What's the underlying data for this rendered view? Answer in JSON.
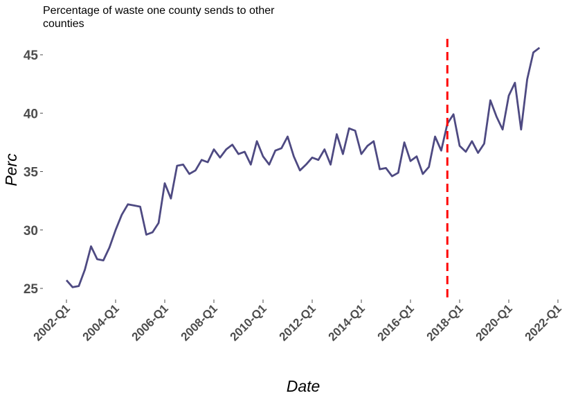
{
  "chart_data": {
    "type": "line",
    "title": "Percentage of waste one county sends to other counties",
    "xlabel": "Date",
    "ylabel": "Perc",
    "x_ticks": [
      "2002-Q1",
      "2004-Q1",
      "2006-Q1",
      "2008-Q1",
      "2010-Q1",
      "2012-Q1",
      "2014-Q1",
      "2016-Q1",
      "2018-Q1",
      "2020-Q1",
      "2022-Q1"
    ],
    "y_ticks": [
      25,
      30,
      35,
      40,
      45
    ],
    "ylim": [
      23.5,
      46.5
    ],
    "grid": false,
    "line_color": "#4e4a82",
    "vline": {
      "x": "2017-Q3",
      "color": "#ff0000",
      "style": "dashed"
    },
    "series": [
      {
        "x": [
          "2002-Q1",
          "2002-Q2",
          "2002-Q3",
          "2002-Q4",
          "2003-Q1",
          "2003-Q2",
          "2003-Q3",
          "2003-Q4",
          "2004-Q1",
          "2004-Q2",
          "2004-Q3",
          "2004-Q4",
          "2005-Q1",
          "2005-Q2",
          "2005-Q3",
          "2005-Q4",
          "2006-Q1",
          "2006-Q2",
          "2006-Q3",
          "2006-Q4",
          "2007-Q1",
          "2007-Q2",
          "2007-Q3",
          "2007-Q4",
          "2008-Q1",
          "2008-Q2",
          "2008-Q3",
          "2008-Q4",
          "2009-Q1",
          "2009-Q2",
          "2009-Q3",
          "2009-Q4",
          "2010-Q1",
          "2010-Q2",
          "2010-Q3",
          "2010-Q4",
          "2011-Q1",
          "2011-Q2",
          "2011-Q3",
          "2011-Q4",
          "2012-Q1",
          "2012-Q2",
          "2012-Q3",
          "2012-Q4",
          "2013-Q1",
          "2013-Q2",
          "2013-Q3",
          "2013-Q4",
          "2014-Q1",
          "2014-Q2",
          "2014-Q3",
          "2014-Q4",
          "2015-Q1",
          "2015-Q2",
          "2015-Q3",
          "2015-Q4",
          "2016-Q1",
          "2016-Q2",
          "2016-Q3",
          "2016-Q4",
          "2017-Q1",
          "2017-Q2",
          "2017-Q3",
          "2017-Q4",
          "2018-Q1",
          "2018-Q2",
          "2018-Q3",
          "2018-Q4",
          "2019-Q1",
          "2019-Q2",
          "2019-Q3",
          "2019-Q4",
          "2020-Q1",
          "2020-Q2",
          "2020-Q3",
          "2020-Q4",
          "2021-Q1",
          "2021-Q2"
        ],
        "values": [
          25.7,
          25.1,
          25.2,
          26.6,
          28.6,
          27.5,
          27.4,
          28.5,
          30.0,
          31.3,
          32.2,
          32.1,
          32.0,
          29.6,
          29.8,
          30.6,
          34.0,
          32.7,
          35.5,
          35.6,
          34.8,
          35.1,
          36.0,
          35.8,
          36.9,
          36.2,
          36.9,
          37.3,
          36.5,
          36.7,
          35.6,
          37.6,
          36.3,
          35.6,
          36.8,
          37.0,
          38.0,
          36.3,
          35.1,
          35.6,
          36.2,
          36.0,
          36.9,
          35.6,
          38.2,
          36.5,
          38.7,
          38.5,
          36.5,
          37.2,
          37.6,
          35.2,
          35.3,
          34.6,
          34.9,
          37.5,
          35.9,
          36.3,
          34.8,
          35.4,
          38.0,
          36.8,
          39.1,
          39.9,
          37.2,
          36.7,
          37.6,
          36.6,
          37.4,
          41.1,
          39.7,
          38.6,
          41.5,
          42.6,
          38.6,
          42.9,
          45.2,
          45.6
        ]
      }
    ]
  }
}
